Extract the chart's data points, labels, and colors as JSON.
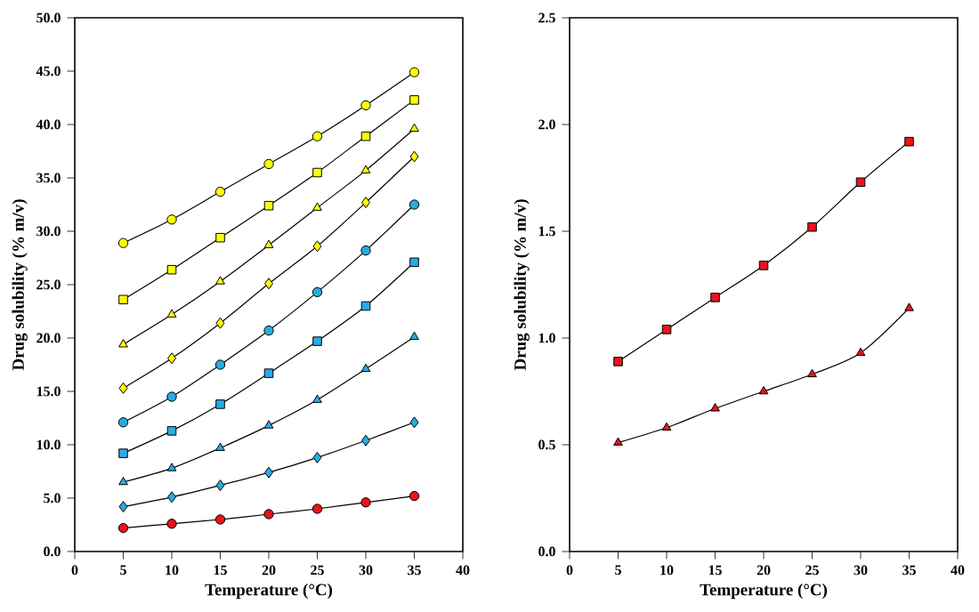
{
  "chart_data": [
    {
      "type": "line",
      "xlabel": "Temperature (°C)",
      "ylabel": "Drug solubility (% m/v)",
      "x": [
        5,
        10,
        15,
        20,
        25,
        30,
        35
      ],
      "xlim": [
        0,
        40
      ],
      "xticks": [
        0,
        5,
        10,
        15,
        20,
        25,
        30,
        35,
        40
      ],
      "ylim": [
        0,
        50
      ],
      "yticks": [
        {
          "value": 0,
          "label": "0.0"
        },
        {
          "value": 5,
          "label": "5.0"
        },
        {
          "value": 10,
          "label": "10.0"
        },
        {
          "value": 15,
          "label": "15.0"
        },
        {
          "value": 20,
          "label": "20.0"
        },
        {
          "value": 25,
          "label": "25.0"
        },
        {
          "value": 30,
          "label": "30.0"
        },
        {
          "value": 35,
          "label": "35.0"
        },
        {
          "value": 40,
          "label": "40.0"
        },
        {
          "value": 45,
          "label": "45.0"
        },
        {
          "value": 50,
          "label": "50.0"
        }
      ],
      "grid": false,
      "line_style": "solid",
      "series": [
        {
          "color": "#ffff00",
          "marker": "circle",
          "values": [
            28.9,
            31.1,
            33.7,
            36.3,
            38.9,
            41.8,
            44.9
          ]
        },
        {
          "color": "#ffff00",
          "marker": "square",
          "values": [
            23.6,
            26.4,
            29.4,
            32.4,
            35.5,
            38.9,
            42.3
          ]
        },
        {
          "color": "#ffff00",
          "marker": "triangle",
          "values": [
            19.4,
            22.2,
            25.3,
            28.7,
            32.2,
            35.7,
            39.6
          ]
        },
        {
          "color": "#ffff00",
          "marker": "diamond",
          "values": [
            15.3,
            18.1,
            21.4,
            25.1,
            28.6,
            32.7,
            37.0
          ]
        },
        {
          "color": "#29abe2",
          "marker": "circle",
          "values": [
            12.1,
            14.5,
            17.5,
            20.7,
            24.3,
            28.2,
            32.5
          ]
        },
        {
          "color": "#29abe2",
          "marker": "square",
          "values": [
            9.2,
            11.3,
            13.8,
            16.7,
            19.7,
            23.0,
            27.1
          ]
        },
        {
          "color": "#29abe2",
          "marker": "triangle",
          "values": [
            6.5,
            7.8,
            9.7,
            11.8,
            14.2,
            17.1,
            20.1
          ]
        },
        {
          "color": "#29abe2",
          "marker": "diamond",
          "values": [
            4.2,
            5.1,
            6.2,
            7.4,
            8.8,
            10.4,
            12.1
          ]
        },
        {
          "color": "#e8141b",
          "marker": "circle",
          "values": [
            2.2,
            2.6,
            3.0,
            3.5,
            4.0,
            4.6,
            5.2
          ]
        }
      ]
    },
    {
      "type": "line",
      "xlabel": "Temperature (°C)",
      "ylabel": "Drug solubility (% m/v)",
      "x": [
        5,
        10,
        15,
        20,
        25,
        30,
        35
      ],
      "xlim": [
        0,
        40
      ],
      "xticks": [
        0,
        5,
        10,
        15,
        20,
        25,
        30,
        35,
        40
      ],
      "ylim": [
        0,
        2.5
      ],
      "yticks": [
        {
          "value": 0,
          "label": "0.0"
        },
        {
          "value": 0.5,
          "label": "0.5"
        },
        {
          "value": 1,
          "label": "1.0"
        },
        {
          "value": 1.5,
          "label": "1.5"
        },
        {
          "value": 2,
          "label": "2.0"
        },
        {
          "value": 2.5,
          "label": "2.5"
        }
      ],
      "grid": false,
      "line_style": "solid",
      "series": [
        {
          "color": "#e8141b",
          "marker": "square",
          "values": [
            0.89,
            1.04,
            1.19,
            1.34,
            1.52,
            1.73,
            1.92
          ]
        },
        {
          "color": "#e8141b",
          "marker": "triangle",
          "values": [
            0.51,
            0.58,
            0.67,
            0.75,
            0.83,
            0.93,
            1.14
          ]
        }
      ]
    }
  ]
}
